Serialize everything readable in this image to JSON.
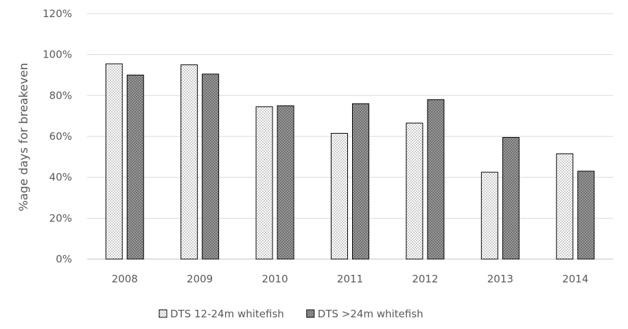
{
  "chart_data": {
    "type": "bar",
    "title": "",
    "xlabel": "",
    "ylabel": "%age days for breakeven",
    "categories": [
      "2008",
      "2009",
      "2010",
      "2011",
      "2012",
      "2013",
      "2014"
    ],
    "series": [
      {
        "name": "DTS 12-24m whitefish",
        "values": [
          95.5,
          95,
          74.5,
          61.5,
          66.5,
          42.5,
          51.5
        ],
        "pattern": "light-dots"
      },
      {
        "name": "DTS >24m whitefish",
        "values": [
          90,
          90.5,
          75,
          76,
          78,
          59.5,
          43
        ],
        "pattern": "dark-dots"
      }
    ],
    "ylim": [
      0,
      120
    ],
    "yticks": [
      0,
      20,
      40,
      60,
      80,
      100,
      120
    ],
    "ytick_labels": [
      "0%",
      "20%",
      "40%",
      "60%",
      "80%",
      "100%",
      "120%"
    ],
    "grid": true,
    "legend_position": "bottom",
    "colors": {
      "gridline": "#d9d9d9",
      "text": "#595959",
      "bar_outline": "#000000",
      "light_fill": "#f2f2f2",
      "dark_fill": "#7f7f7f"
    }
  }
}
